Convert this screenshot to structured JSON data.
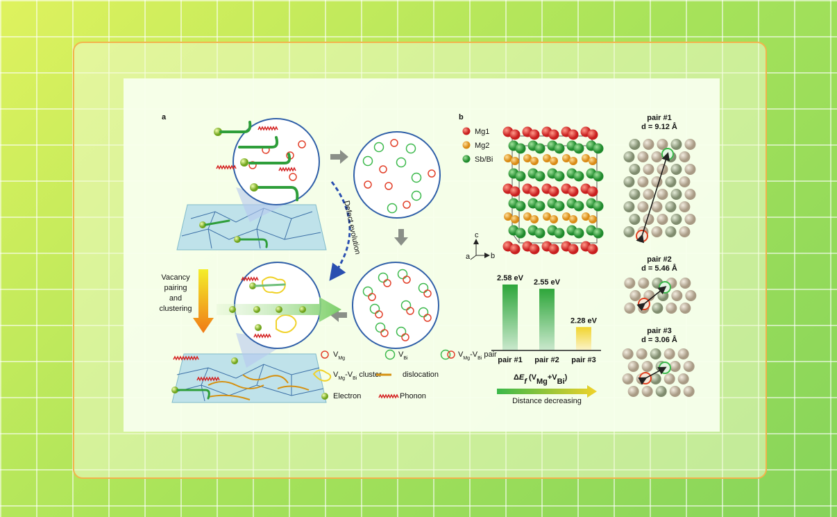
{
  "panel_a": {
    "label": "a",
    "side_label": [
      "Vacancy",
      "pairing",
      "and",
      "clustering"
    ],
    "arrow_label": "Defect evolution",
    "legend": [
      {
        "parts": [
          {
            "text": "V",
            "style": "normal"
          },
          {
            "text": "Mg",
            "style": "sub"
          }
        ]
      },
      {
        "parts": [
          {
            "text": "V",
            "style": "normal"
          },
          {
            "text": "Bi",
            "style": "sub"
          }
        ]
      },
      {
        "parts": [
          {
            "text": "V",
            "style": "normal"
          },
          {
            "text": "Mg",
            "style": "sub"
          },
          {
            "text": "-V",
            "style": "normal"
          },
          {
            "text": "Bi",
            "style": "sub"
          },
          {
            "text": " pair",
            "style": "normal"
          }
        ]
      },
      {
        "parts": [
          {
            "text": "V",
            "style": "normal"
          },
          {
            "text": "Mg",
            "style": "sub"
          },
          {
            "text": "-V",
            "style": "normal"
          },
          {
            "text": "Bi",
            "style": "sub"
          },
          {
            "text": " cluster",
            "style": "normal"
          }
        ]
      },
      {
        "parts": [
          {
            "text": "dislocation",
            "style": "normal"
          }
        ]
      },
      {
        "parts": [
          {
            "text": "Electron",
            "style": "normal"
          }
        ]
      },
      {
        "parts": [
          {
            "text": "Phonon",
            "style": "normal"
          }
        ]
      }
    ]
  },
  "panel_b": {
    "label": "b",
    "atoms": [
      "Mg1",
      "Mg2",
      "Sb/Bi"
    ],
    "axes": [
      "a",
      "b",
      "c"
    ],
    "pairs": [
      {
        "name": "pair #1",
        "distance": "d = 9.12 Å"
      },
      {
        "name": "pair #2",
        "distance": "d = 5.46 Å"
      },
      {
        "name": "pair #3",
        "distance": "d = 3.06 Å"
      }
    ]
  },
  "chart_data": {
    "type": "bar",
    "categories": [
      "pair #1",
      "pair #2",
      "pair #3"
    ],
    "values": [
      2.58,
      2.55,
      2.28
    ],
    "value_labels": [
      "2.58 eV",
      "2.55 eV",
      "2.28 eV"
    ],
    "colors": [
      "#2ea63a",
      "#2ea63a",
      "#f1d42e"
    ],
    "x_title_parts": [
      {
        "text": "Δ",
        "style": "normal"
      },
      {
        "text": "E",
        "style": "italic"
      },
      {
        "text": "f",
        "style": "italic-sub"
      },
      {
        "text": " (V",
        "style": "normal"
      },
      {
        "text": "Mg",
        "style": "sub"
      },
      {
        "text": "+V",
        "style": "normal"
      },
      {
        "text": "Bi",
        "style": "sub"
      },
      {
        "text": ")",
        "style": "normal"
      }
    ],
    "annotation": "Distance decreasing"
  }
}
